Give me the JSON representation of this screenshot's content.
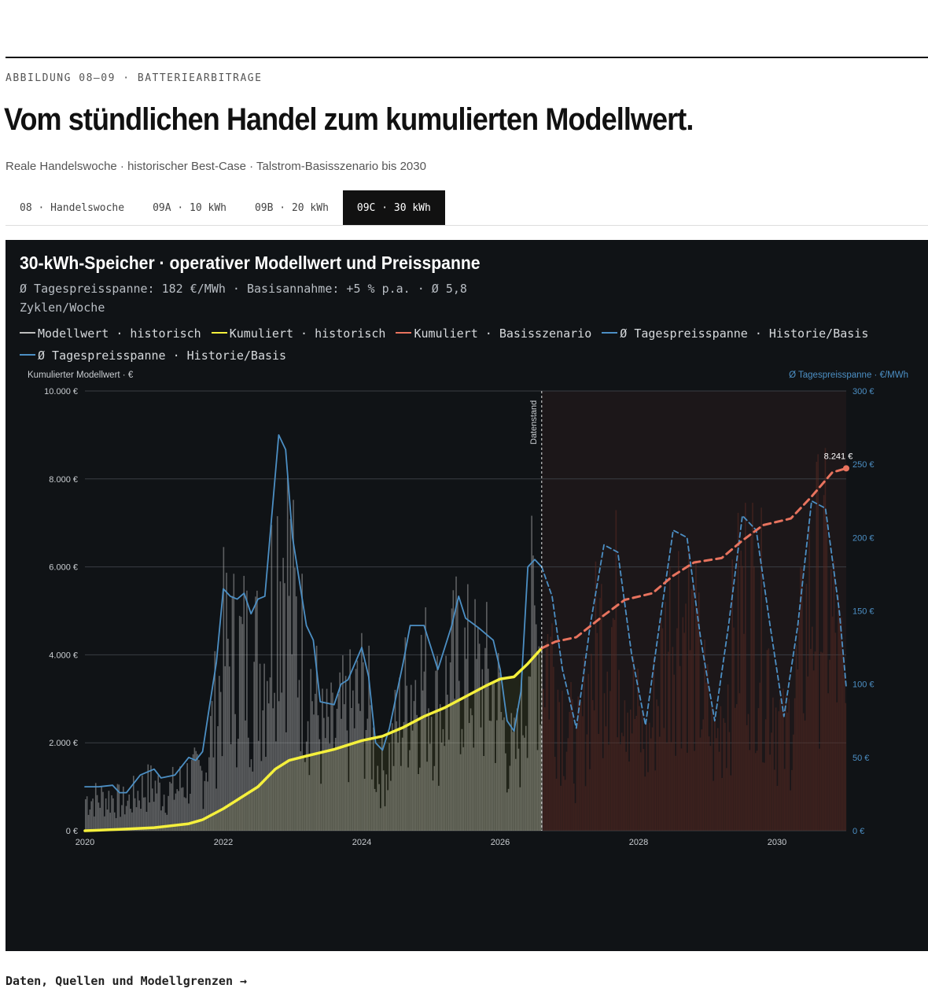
{
  "header": {
    "kicker": "ABBILDUNG 08–09 · BATTERIEARBITRAGE",
    "title": "Vom stündlichen Handel zum kumulierten Modellwert.",
    "subtitle": "Reale Handelswoche · historischer Best-Case · Talstrom-Basisszenario bis 2030"
  },
  "tabs": [
    {
      "label": "08 · Handelswoche",
      "active": false
    },
    {
      "label": "09A · 10 kWh",
      "active": false
    },
    {
      "label": "09B · 20 kWh",
      "active": false
    },
    {
      "label": "09C · 30 kWh",
      "active": true
    }
  ],
  "panel": {
    "title": "30-kWh-Speicher · operativer Modellwert und Preisspanne",
    "subtitle": "Ø Tagespreisspanne: 182 €/MWh · Basisannahme: +5 % p.a. · Ø 5,8 Zyklen/Woche"
  },
  "colors": {
    "modellwert": "#bdbdbd",
    "kumuliert_hist": "#f5f03c",
    "kumuliert_basis": "#e8735e",
    "spanne": "#4c8fc4",
    "bars_forecast": "#5a2a22"
  },
  "chart_data": {
    "type": "line",
    "legend": [
      {
        "label": "Modellwert · historisch",
        "color": "#bdbdbd"
      },
      {
        "label": "Kumuliert · historisch",
        "color": "#f5f03c"
      },
      {
        "label": "Kumuliert · Basisszenario",
        "color": "#e8735e"
      },
      {
        "label": "Ø Tagespreisspanne · Historie/Basis",
        "color": "#4c8fc4"
      },
      {
        "label": "Ø Tagespreisspanne · Historie/Basis",
        "color": "#4c8fc4"
      }
    ],
    "y_left": {
      "label": "Kumulierter Modellwert · €",
      "min": 0,
      "max": 10000,
      "ticks": [
        "0 €",
        "2.000 €",
        "4.000 €",
        "6.000 €",
        "8.000 €",
        "10.000 €"
      ]
    },
    "y_right": {
      "label": "Ø Tagespreisspanne · €/MWh",
      "min": 0,
      "max": 300,
      "ticks": [
        "0 €",
        "50 €",
        "100 €",
        "150 €",
        "200 €",
        "250 €",
        "300 €"
      ]
    },
    "x": {
      "min": 2020,
      "max": 2031,
      "ticks": [
        "2020",
        "2022",
        "2024",
        "2026",
        "2028",
        "2030"
      ]
    },
    "cutoff": {
      "x": 2026.6,
      "label": "Datenstand"
    },
    "end_label": "8.241 €",
    "series": [
      {
        "name": "Kumuliert · historisch",
        "axis": "left",
        "points": [
          [
            2020.0,
            0
          ],
          [
            2020.5,
            30
          ],
          [
            2021.0,
            70
          ],
          [
            2021.5,
            160
          ],
          [
            2021.7,
            250
          ],
          [
            2022.0,
            500
          ],
          [
            2022.2,
            700
          ],
          [
            2022.5,
            1000
          ],
          [
            2022.75,
            1400
          ],
          [
            2022.95,
            1600
          ],
          [
            2023.2,
            1700
          ],
          [
            2023.6,
            1850
          ],
          [
            2024.0,
            2050
          ],
          [
            2024.3,
            2150
          ],
          [
            2024.6,
            2350
          ],
          [
            2024.9,
            2600
          ],
          [
            2025.2,
            2800
          ],
          [
            2025.5,
            3050
          ],
          [
            2025.8,
            3300
          ],
          [
            2026.0,
            3450
          ],
          [
            2026.2,
            3500
          ],
          [
            2026.4,
            3800
          ],
          [
            2026.6,
            4150
          ]
        ]
      },
      {
        "name": "Kumuliert · Basisszenario",
        "axis": "left",
        "points": [
          [
            2026.6,
            4150
          ],
          [
            2026.8,
            4300
          ],
          [
            2027.1,
            4400
          ],
          [
            2027.5,
            4900
          ],
          [
            2027.8,
            5250
          ],
          [
            2028.2,
            5400
          ],
          [
            2028.5,
            5800
          ],
          [
            2028.8,
            6100
          ],
          [
            2029.2,
            6200
          ],
          [
            2029.5,
            6600
          ],
          [
            2029.8,
            6950
          ],
          [
            2030.2,
            7100
          ],
          [
            2030.5,
            7600
          ],
          [
            2030.8,
            8150
          ],
          [
            2031.0,
            8241
          ]
        ]
      },
      {
        "name": "Ø Tagespreisspanne · historisch",
        "axis": "right",
        "points": [
          [
            2020.0,
            30
          ],
          [
            2020.2,
            30
          ],
          [
            2020.4,
            31
          ],
          [
            2020.5,
            26
          ],
          [
            2020.6,
            26
          ],
          [
            2020.8,
            38
          ],
          [
            2021.0,
            42
          ],
          [
            2021.1,
            36
          ],
          [
            2021.3,
            38
          ],
          [
            2021.5,
            50
          ],
          [
            2021.6,
            48
          ],
          [
            2021.7,
            54
          ],
          [
            2021.8,
            85
          ],
          [
            2021.9,
            115
          ],
          [
            2022.0,
            165
          ],
          [
            2022.1,
            160
          ],
          [
            2022.2,
            158
          ],
          [
            2022.3,
            162
          ],
          [
            2022.4,
            148
          ],
          [
            2022.5,
            158
          ],
          [
            2022.6,
            160
          ],
          [
            2022.8,
            270
          ],
          [
            2022.9,
            260
          ],
          [
            2023.0,
            200
          ],
          [
            2023.2,
            140
          ],
          [
            2023.3,
            130
          ],
          [
            2023.4,
            88
          ],
          [
            2023.6,
            86
          ],
          [
            2023.7,
            100
          ],
          [
            2023.8,
            103
          ],
          [
            2024.0,
            125
          ],
          [
            2024.1,
            105
          ],
          [
            2024.2,
            60
          ],
          [
            2024.3,
            55
          ],
          [
            2024.4,
            70
          ],
          [
            2024.6,
            115
          ],
          [
            2024.7,
            140
          ],
          [
            2024.9,
            140
          ],
          [
            2025.1,
            110
          ],
          [
            2025.3,
            140
          ],
          [
            2025.4,
            160
          ],
          [
            2025.5,
            145
          ],
          [
            2025.7,
            138
          ],
          [
            2025.9,
            130
          ],
          [
            2026.0,
            110
          ],
          [
            2026.1,
            75
          ],
          [
            2026.2,
            68
          ],
          [
            2026.3,
            95
          ],
          [
            2026.4,
            180
          ],
          [
            2026.5,
            185
          ],
          [
            2026.6,
            180
          ]
        ]
      },
      {
        "name": "Ø Tagespreisspanne · Basis",
        "axis": "right",
        "points": [
          [
            2026.6,
            180
          ],
          [
            2026.75,
            160
          ],
          [
            2026.9,
            110
          ],
          [
            2027.1,
            70
          ],
          [
            2027.3,
            140
          ],
          [
            2027.5,
            195
          ],
          [
            2027.7,
            190
          ],
          [
            2027.9,
            120
          ],
          [
            2028.1,
            72
          ],
          [
            2028.3,
            140
          ],
          [
            2028.5,
            205
          ],
          [
            2028.7,
            200
          ],
          [
            2028.9,
            130
          ],
          [
            2029.1,
            75
          ],
          [
            2029.3,
            140
          ],
          [
            2029.5,
            215
          ],
          [
            2029.7,
            205
          ],
          [
            2029.9,
            140
          ],
          [
            2030.1,
            78
          ],
          [
            2030.3,
            140
          ],
          [
            2030.5,
            225
          ],
          [
            2030.7,
            220
          ],
          [
            2030.9,
            150
          ],
          [
            2031.0,
            98
          ]
        ]
      }
    ]
  },
  "footer": {
    "link": "Daten, Quellen und Modellgrenzen →"
  }
}
